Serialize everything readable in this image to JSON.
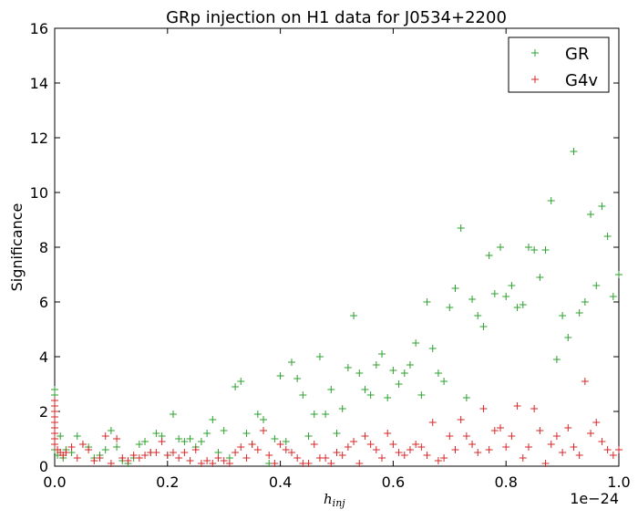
{
  "chart_data": {
    "type": "scatter",
    "title": "GRp injection on H1 data for J0534+2200",
    "xlabel_main": "h",
    "xlabel_sub": "inj",
    "ylabel": "Significance",
    "x_offset_label": "1e−24",
    "xlim": [
      0,
      1.0
    ],
    "ylim": [
      0,
      16
    ],
    "x_ticks": [
      "0.0",
      "0.2",
      "0.4",
      "0.6",
      "0.8",
      "1.0"
    ],
    "y_ticks": [
      "0",
      "2",
      "4",
      "6",
      "8",
      "10",
      "12",
      "14",
      "16"
    ],
    "legend_position": "top-right",
    "colors": {
      "GR": "#2ca02c",
      "G4v": "#d62728",
      "spine": "#000000"
    },
    "series": [
      {
        "name": "GR",
        "marker": "+",
        "x": [
          0.0,
          0.0,
          0.0,
          0.0,
          0.0,
          0.0,
          0.0,
          0.0,
          0.005,
          0.01,
          0.015,
          0.02,
          0.03,
          0.04,
          0.05,
          0.06,
          0.07,
          0.08,
          0.09,
          0.1,
          0.11,
          0.12,
          0.13,
          0.14,
          0.15,
          0.16,
          0.17,
          0.18,
          0.19,
          0.2,
          0.21,
          0.22,
          0.23,
          0.24,
          0.25,
          0.26,
          0.27,
          0.28,
          0.29,
          0.3,
          0.31,
          0.32,
          0.33,
          0.34,
          0.35,
          0.36,
          0.37,
          0.38,
          0.39,
          0.4,
          0.41,
          0.42,
          0.43,
          0.44,
          0.45,
          0.46,
          0.47,
          0.48,
          0.49,
          0.5,
          0.51,
          0.52,
          0.53,
          0.54,
          0.55,
          0.56,
          0.57,
          0.58,
          0.59,
          0.6,
          0.61,
          0.62,
          0.63,
          0.64,
          0.65,
          0.66,
          0.67,
          0.68,
          0.69,
          0.7,
          0.71,
          0.72,
          0.73,
          0.74,
          0.75,
          0.76,
          0.77,
          0.78,
          0.79,
          0.8,
          0.81,
          0.82,
          0.83,
          0.84,
          0.85,
          0.86,
          0.87,
          0.88,
          0.89,
          0.9,
          0.91,
          0.92,
          0.93,
          0.94,
          0.95,
          0.96,
          0.97,
          0.98,
          0.99,
          1.0
        ],
        "y": [
          2.8,
          2.6,
          2.4,
          2.2,
          2.0,
          1.8,
          1.6,
          0.6,
          0.4,
          1.1,
          0.3,
          0.6,
          0.5,
          1.1,
          0.8,
          0.7,
          0.3,
          0.4,
          0.6,
          1.3,
          0.7,
          0.2,
          0.1,
          0.3,
          0.8,
          0.9,
          0.5,
          1.2,
          1.1,
          0.4,
          1.9,
          1.0,
          0.9,
          1.0,
          0.7,
          0.9,
          1.2,
          1.7,
          0.5,
          1.3,
          0.3,
          2.9,
          3.1,
          1.2,
          0.8,
          1.9,
          1.7,
          0.1,
          1.0,
          3.3,
          0.9,
          3.8,
          3.2,
          2.6,
          1.1,
          1.9,
          4.0,
          1.9,
          2.8,
          1.2,
          2.1,
          3.6,
          5.5,
          3.4,
          2.8,
          2.6,
          3.7,
          4.1,
          2.5,
          3.5,
          3.0,
          3.4,
          3.7,
          4.5,
          2.6,
          6.0,
          4.3,
          3.4,
          3.1,
          5.8,
          6.5,
          8.7,
          2.5,
          6.1,
          5.5,
          5.1,
          7.7,
          6.3,
          8.0,
          6.2,
          6.6,
          5.8,
          5.9,
          8.0,
          7.9,
          6.9,
          7.9,
          9.7,
          3.9,
          5.5,
          4.7,
          11.5,
          5.6,
          6.0,
          9.2,
          6.6,
          9.5,
          8.4,
          6.2,
          7.0
        ]
      },
      {
        "name": "G4v",
        "marker": "+",
        "x": [
          0.0,
          0.0,
          0.0,
          0.0,
          0.0,
          0.0,
          0.0,
          0.0,
          0.0,
          0.005,
          0.01,
          0.015,
          0.02,
          0.03,
          0.04,
          0.05,
          0.06,
          0.07,
          0.08,
          0.09,
          0.1,
          0.11,
          0.12,
          0.13,
          0.14,
          0.15,
          0.16,
          0.17,
          0.18,
          0.19,
          0.2,
          0.21,
          0.22,
          0.23,
          0.24,
          0.25,
          0.26,
          0.27,
          0.28,
          0.29,
          0.3,
          0.31,
          0.32,
          0.33,
          0.34,
          0.35,
          0.36,
          0.37,
          0.38,
          0.39,
          0.4,
          0.41,
          0.42,
          0.43,
          0.44,
          0.45,
          0.46,
          0.47,
          0.48,
          0.49,
          0.5,
          0.51,
          0.52,
          0.53,
          0.54,
          0.55,
          0.56,
          0.57,
          0.58,
          0.59,
          0.6,
          0.61,
          0.62,
          0.63,
          0.64,
          0.65,
          0.66,
          0.67,
          0.68,
          0.69,
          0.7,
          0.71,
          0.72,
          0.73,
          0.74,
          0.75,
          0.76,
          0.77,
          0.78,
          0.79,
          0.8,
          0.81,
          0.82,
          0.83,
          0.84,
          0.85,
          0.86,
          0.87,
          0.88,
          0.89,
          0.9,
          0.91,
          0.92,
          0.93,
          0.94,
          0.95,
          0.96,
          0.97,
          0.98,
          0.99,
          1.0
        ],
        "y": [
          2.4,
          2.2,
          2.0,
          1.8,
          1.6,
          1.4,
          1.2,
          1.0,
          0.8,
          0.6,
          0.5,
          0.4,
          0.5,
          0.7,
          0.3,
          0.8,
          0.6,
          0.2,
          0.3,
          1.1,
          0.1,
          1.0,
          0.3,
          0.2,
          0.4,
          0.3,
          0.4,
          0.5,
          0.5,
          0.9,
          0.4,
          0.5,
          0.3,
          0.5,
          0.2,
          0.6,
          0.1,
          0.2,
          0.1,
          0.3,
          0.2,
          0.1,
          0.5,
          0.7,
          0.3,
          0.8,
          0.6,
          1.3,
          0.4,
          0.1,
          0.8,
          0.6,
          0.5,
          0.3,
          0.1,
          0.1,
          0.8,
          0.3,
          0.3,
          0.1,
          0.5,
          0.4,
          0.7,
          0.9,
          0.1,
          1.1,
          0.8,
          0.6,
          0.3,
          1.2,
          0.8,
          0.5,
          0.4,
          0.6,
          0.8,
          0.7,
          0.4,
          1.6,
          0.2,
          0.3,
          1.1,
          0.6,
          1.7,
          1.1,
          0.8,
          0.5,
          2.1,
          0.6,
          1.3,
          1.4,
          0.7,
          1.1,
          2.2,
          0.3,
          0.7,
          2.1,
          1.3,
          0.1,
          0.8,
          1.1,
          0.5,
          1.4,
          0.7,
          0.4,
          3.1,
          1.2,
          1.6,
          0.9,
          0.6,
          0.4,
          0.6
        ]
      }
    ]
  }
}
